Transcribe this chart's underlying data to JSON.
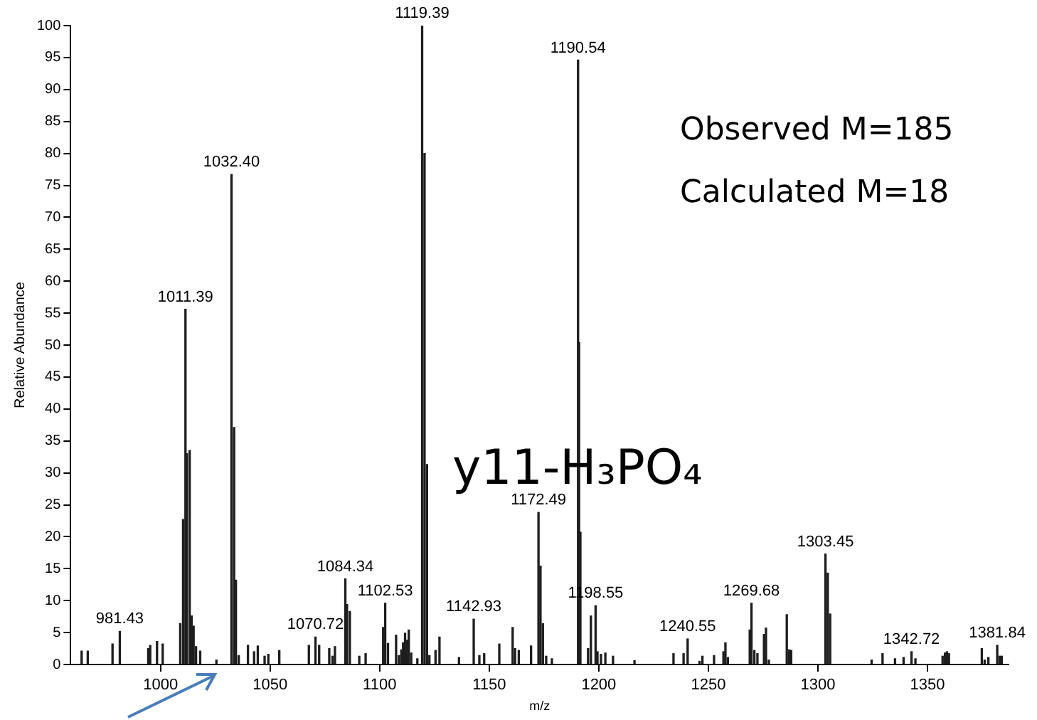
{
  "chart_data": {
    "type": "bar",
    "xlabel": "m/z",
    "ylabel": "Relative Abundance",
    "x": [
      964.0,
      966.8,
      978.1,
      981.43,
      994.4,
      995.3,
      998.4,
      1001.0,
      1009.0,
      1010.3,
      1011.39,
      1012.0,
      1013.3,
      1014.2,
      1015.1,
      1016.2,
      1018.1,
      1025.5,
      1032.4,
      1033.6,
      1034.4,
      1035.7,
      1039.9,
      1042.7,
      1044.4,
      1047.5,
      1049.2,
      1054.2,
      1067.7,
      1070.72,
      1072.4,
      1077.0,
      1078.5,
      1079.6,
      1084.34,
      1085.1,
      1086.4,
      1090.7,
      1093.6,
      1101.6,
      1102.53,
      1103.8,
      1107.5,
      1108.8,
      1109.9,
      1110.7,
      1111.6,
      1112.5,
      1113.3,
      1114.4,
      1117.2,
      1119.39,
      1120.5,
      1121.6,
      1122.7,
      1125.5,
      1127.3,
      1136.2,
      1142.93,
      1145.5,
      1147.7,
      1154.6,
      1160.7,
      1161.8,
      1163.5,
      1169.1,
      1172.49,
      1173.4,
      1174.5,
      1176.0,
      1178.6,
      1190.54,
      1191.0,
      1191.6,
      1195.1,
      1196.4,
      1198.55,
      1199.4,
      1201.0,
      1203.0,
      1206.5,
      1216.3,
      1234.1,
      1238.7,
      1240.55,
      1246.0,
      1247.3,
      1252.6,
      1256.9,
      1257.8,
      1258.9,
      1268.9,
      1269.68,
      1271.0,
      1272.4,
      1275.4,
      1276.3,
      1277.6,
      1285.8,
      1286.9,
      1287.8,
      1303.45,
      1304.5,
      1305.6,
      1324.5,
      1329.5,
      1335.2,
      1339.1,
      1342.72,
      1344.5,
      1356.9,
      1358.0,
      1358.9,
      1359.8,
      1374.8,
      1376.1,
      1377.8,
      1381.84,
      1383.0,
      1383.9
    ],
    "values": [
      2.1,
      2.1,
      3.2,
      5.2,
      2.5,
      3.0,
      3.6,
      3.2,
      6.4,
      22.7,
      55.6,
      33.0,
      33.5,
      7.6,
      6.0,
      2.8,
      2.1,
      0.7,
      76.7,
      37.1,
      13.2,
      1.4,
      3.0,
      2.0,
      2.9,
      1.3,
      1.6,
      2.2,
      3.0,
      4.3,
      3.0,
      2.5,
      1.3,
      2.8,
      13.4,
      9.4,
      8.3,
      1.3,
      1.7,
      5.8,
      9.6,
      3.3,
      4.6,
      1.4,
      2.3,
      3.4,
      4.9,
      3.8,
      5.4,
      1.8,
      0.9,
      100,
      80.0,
      31.3,
      1.4,
      2.2,
      4.3,
      1.1,
      7.1,
      1.4,
      1.7,
      3.2,
      5.8,
      2.5,
      2.2,
      2.9,
      23.8,
      15.4,
      6.4,
      1.3,
      0.9,
      94.6,
      50.4,
      20.7,
      2.5,
      7.6,
      9.2,
      2.0,
      1.6,
      1.8,
      1.3,
      0.6,
      1.7,
      1.7,
      4.0,
      0.5,
      1.3,
      1.4,
      2.0,
      3.4,
      1.1,
      5.4,
      9.6,
      2.2,
      1.7,
      4.7,
      5.7,
      0.7,
      7.8,
      2.3,
      2.2,
      17.3,
      14.3,
      7.9,
      0.7,
      1.7,
      0.9,
      1.1,
      2.0,
      0.9,
      1.3,
      1.8,
      2.0,
      1.7,
      2.5,
      0.7,
      1.1,
      3.0,
      1.3,
      1.3
    ],
    "color": "#1e1e1e",
    "xlim": [
      959,
      1387
    ],
    "xticks": [
      1000,
      1050,
      1100,
      1150,
      1200,
      1250,
      1300,
      1350
    ],
    "ylim": [
      0,
      100
    ],
    "yticks": [
      0,
      5,
      10,
      15,
      20,
      25,
      30,
      35,
      40,
      45,
      50,
      55,
      60,
      65,
      70,
      75,
      80,
      85,
      90,
      95,
      100
    ],
    "grid": false,
    "legend": false,
    "annotations": [
      {
        "text": "981.43",
        "x": 981.43,
        "y": 5.2
      },
      {
        "text": "1011.39",
        "x": 1011.39,
        "y": 55.6
      },
      {
        "text": "1032.40",
        "x": 1032.4,
        "y": 76.7
      },
      {
        "text": "1070.72",
        "x": 1070.72,
        "y": 4.3
      },
      {
        "text": "1084.34",
        "x": 1084.34,
        "y": 13.4
      },
      {
        "text": "1102.53",
        "x": 1102.53,
        "y": 9.6
      },
      {
        "text": "1119.39",
        "x": 1119.39,
        "y": 100
      },
      {
        "text": "1142.93",
        "x": 1142.93,
        "y": 7.1
      },
      {
        "text": "1172.49",
        "x": 1172.49,
        "y": 23.8
      },
      {
        "text": "1190.54",
        "x": 1190.54,
        "y": 94.6
      },
      {
        "text": "1198.55",
        "x": 1198.55,
        "y": 9.2
      },
      {
        "text": "1240.55",
        "x": 1240.55,
        "y": 4.0
      },
      {
        "text": "1269.68",
        "x": 1269.68,
        "y": 9.6
      },
      {
        "text": "1303.45",
        "x": 1303.45,
        "y": 17.3
      },
      {
        "text": "1342.72",
        "x": 1342.72,
        "y": 2.0
      },
      {
        "text": "1381.84",
        "x": 1381.84,
        "y": 3.0
      },
      "Observed M=185",
      "Calculated M=18",
      "y11-H₃PO₄"
    ]
  }
}
